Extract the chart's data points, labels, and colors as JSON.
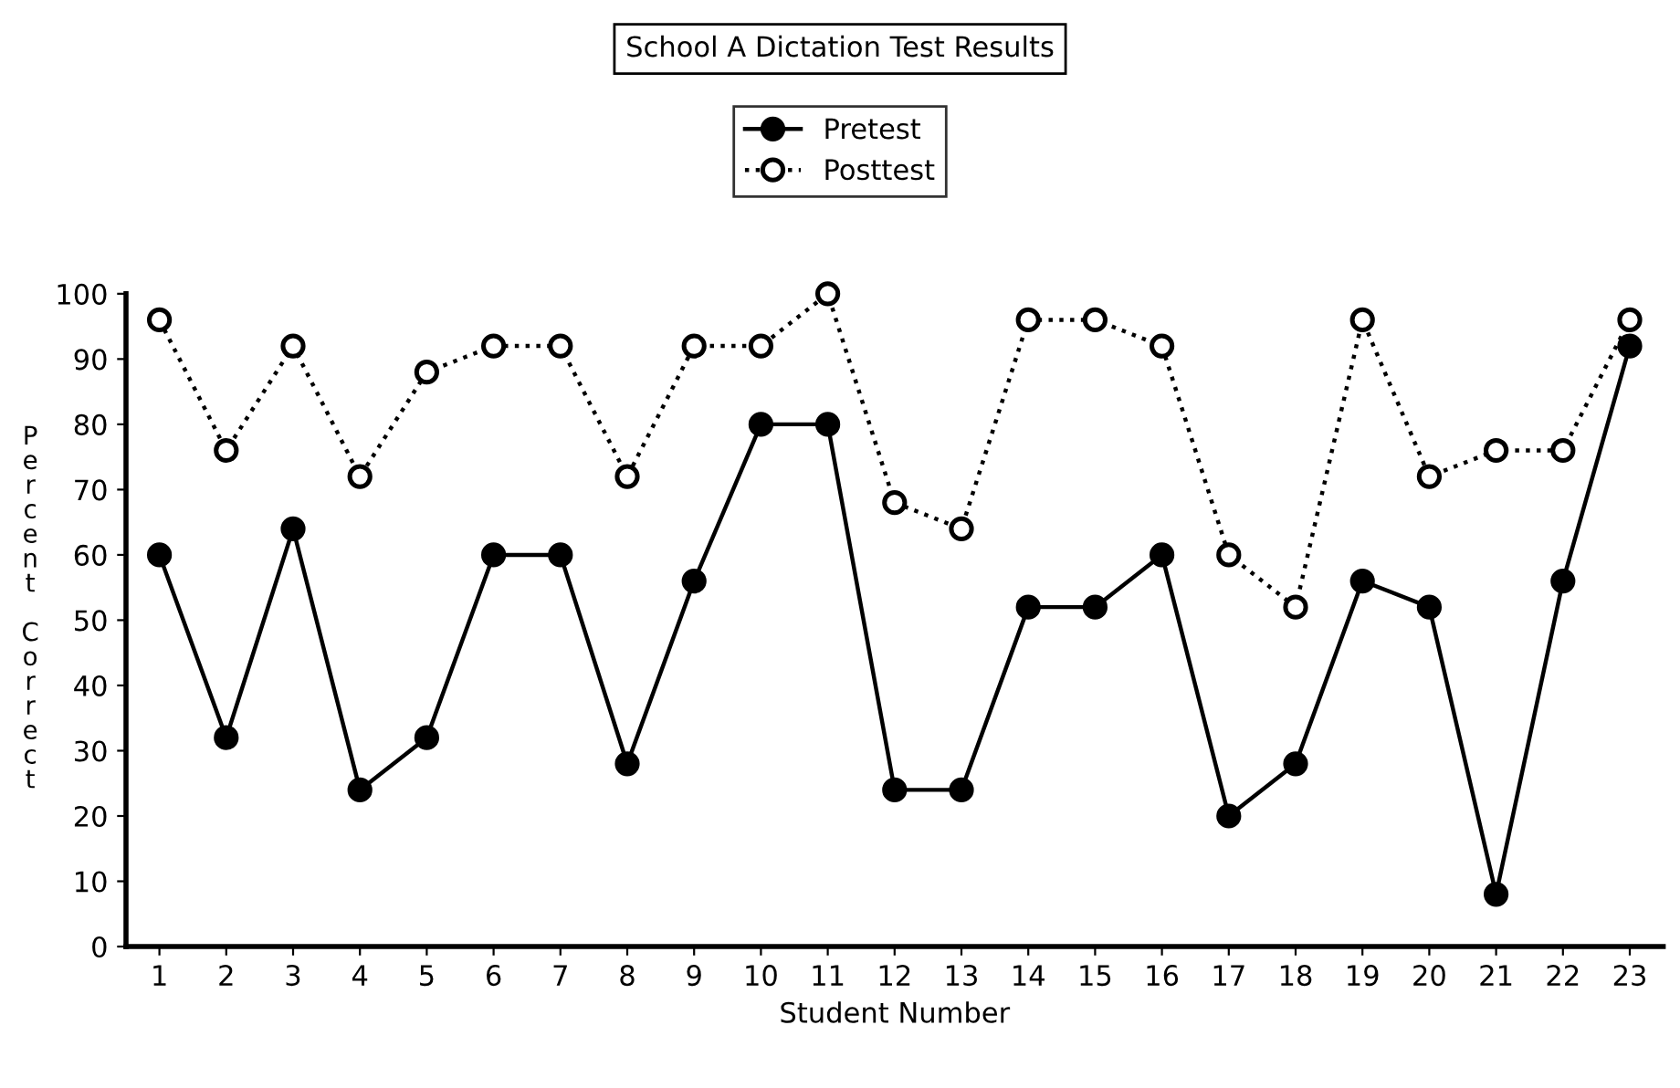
{
  "chart_data": {
    "type": "line",
    "title": "School A Dictation Test Results",
    "xlabel": "Student Number",
    "ylabel": "Percent Correct",
    "categories": [
      "1",
      "2",
      "3",
      "4",
      "5",
      "6",
      "7",
      "8",
      "9",
      "10",
      "11",
      "12",
      "13",
      "14",
      "15",
      "16",
      "17",
      "18",
      "19",
      "20",
      "21",
      "22",
      "23"
    ],
    "series": [
      {
        "name": "Pretest",
        "color": "#000000",
        "marker": "circle",
        "line_style": "solid",
        "values": [
          60,
          32,
          64,
          24,
          32,
          60,
          60,
          28,
          56,
          80,
          80,
          24,
          24,
          52,
          52,
          60,
          20,
          28,
          56,
          52,
          8,
          56,
          92
        ]
      },
      {
        "name": "Posttest",
        "color": "#000000",
        "marker": "circle",
        "line_style": "dotted",
        "values": [
          96,
          76,
          92,
          72,
          88,
          92,
          92,
          72,
          92,
          92,
          100,
          68,
          64,
          96,
          96,
          92,
          60,
          52,
          96,
          72,
          76,
          76,
          96
        ]
      }
    ],
    "ylim": [
      0,
      100
    ],
    "yticks": [
      0,
      10,
      20,
      30,
      40,
      50,
      60,
      70,
      80,
      90,
      100
    ],
    "grid": false,
    "legend": "top"
  }
}
